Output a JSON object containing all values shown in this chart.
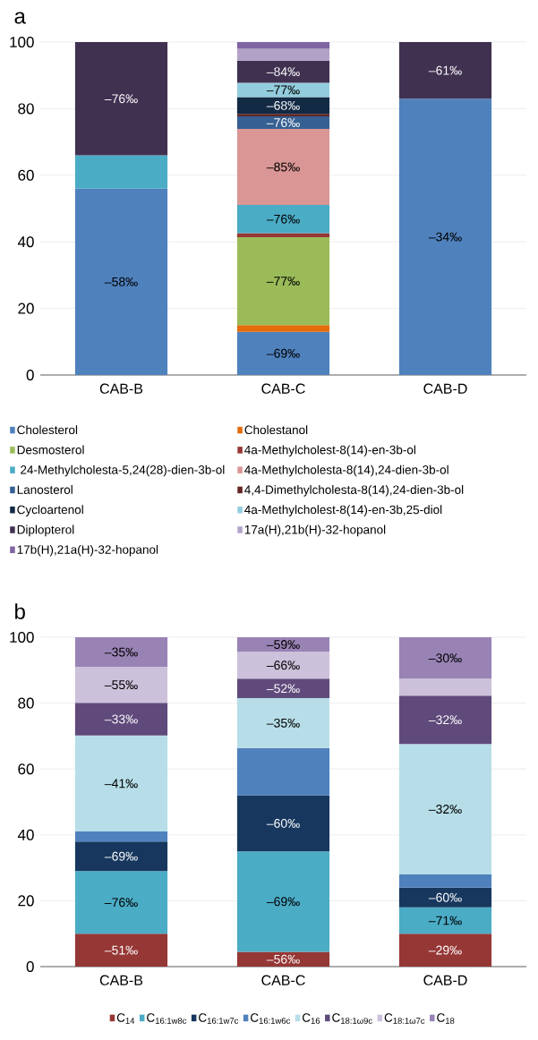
{
  "chart_data": [
    {
      "type": "bar",
      "title": "a",
      "stacked": true,
      "categories": [
        "CAB-B",
        "CAB-C",
        "CAB-D"
      ],
      "ylim": [
        0,
        100
      ],
      "yticks": [
        0,
        20,
        40,
        60,
        80,
        100
      ],
      "grid": "y",
      "legend": "bottom",
      "series": [
        {
          "name": "Cholesterol",
          "color": "#4f81bd",
          "values": [
            56,
            13,
            83
          ]
        },
        {
          "name": "Cholestanol",
          "color": "#e46c0a",
          "values": [
            null,
            2,
            null
          ]
        },
        {
          "name": "Desmosterol",
          "color": "#9bbb59",
          "values": [
            null,
            26.4,
            null
          ]
        },
        {
          "name": "4a-Methylcholest-8(14)-en-3b-ol",
          "color": "#953735",
          "values": [
            null,
            1.2,
            null
          ]
        },
        {
          "name": " 24-Methylcholesta-5,24(28)-dien-3b-ol",
          "color": "#4bacc6",
          "values": [
            10,
            8.5,
            null
          ]
        },
        {
          "name": "4a-Methylcholesta-8(14),24-dien-3b-ol",
          "color": "#d99694",
          "values": [
            null,
            22.8,
            null
          ]
        },
        {
          "name": "Lanosterol",
          "color": "#366092",
          "values": [
            null,
            3.8,
            null
          ]
        },
        {
          "name": "4,4-Dimethylcholesta-8(14),24-dien-3b-ol",
          "color": "#632523",
          "values": [
            null,
            0.7,
            null
          ]
        },
        {
          "name": "Cycloartenol",
          "color": "#132a45",
          "values": [
            null,
            5.1,
            null
          ]
        },
        {
          "name": "4a-Methylcholest-8(14)-en-3b,25-diol",
          "color": "#93cddd",
          "values": [
            null,
            4.3,
            null
          ]
        },
        {
          "name": "Diplopterol",
          "color": "#403151",
          "values": [
            34,
            6.6,
            17
          ]
        },
        {
          "name": "17a(H),21b(H)-32-hopanol",
          "color": "#b3a2c7",
          "values": [
            null,
            3.6,
            null
          ]
        },
        {
          "name": "17b(H),21a(H)-32-hopanol",
          "color": "#8064a2",
          "values": [
            null,
            2.0,
            null
          ]
        }
      ],
      "annotations": [
        "–58‰",
        "–76‰",
        "–69‰",
        "–77‰",
        "–76‰",
        "–85‰",
        "–76‰",
        "–68‰",
        "–77‰",
        "–84‰",
        "–34‰",
        "–61‰"
      ]
    },
    {
      "type": "bar",
      "title": "b",
      "stacked": true,
      "categories": [
        "CAB-B",
        "CAB-C",
        "CAB-D"
      ],
      "ylim": [
        0,
        100
      ],
      "yticks": [
        0,
        20,
        40,
        60,
        80,
        100
      ],
      "grid": "y",
      "legend": "bottom",
      "series": [
        {
          "name": "C$_{14}$",
          "color": "#953735",
          "values": [
            10,
            4.5,
            10
          ]
        },
        {
          "name": "C$_{16:1w8c}$",
          "color": "#4bacc6",
          "values": [
            19,
            30.5,
            8
          ]
        },
        {
          "name": "C$_{16:1w7c}$",
          "color": "#17375e",
          "values": [
            9,
            17,
            6
          ]
        },
        {
          "name": "C$_{16:1w6c}$",
          "color": "#4f81bd",
          "values": [
            3,
            14.4,
            4
          ]
        },
        {
          "name": "C$_{16}$",
          "color": "#b7dee8",
          "values": [
            29.2,
            15.1,
            39.6
          ]
        },
        {
          "name": "C$_{18:1ω9c}$",
          "color": "#604a7b",
          "values": [
            9.9,
            5.9,
            14.7
          ]
        },
        {
          "name": "C$_{18:1ω7c}$",
          "color": "#ccc1da",
          "values": [
            10.9,
            8.2,
            5.1
          ]
        },
        {
          "name": "C$_{18}$",
          "color": "#9983b5",
          "values": [
            9,
            4.4,
            12.6
          ]
        }
      ],
      "annotations": [
        "–51‰",
        "–76‰",
        "–69‰",
        "–41‰",
        "–33‰",
        "–55‰",
        "–35‰",
        "–56‰",
        "–69‰",
        "–60‰",
        "–35‰",
        "–52‰",
        "–66‰",
        "–59‰",
        "–29‰",
        "–71‰",
        "–60‰",
        "–32‰",
        "–32‰",
        "–30‰"
      ]
    }
  ]
}
